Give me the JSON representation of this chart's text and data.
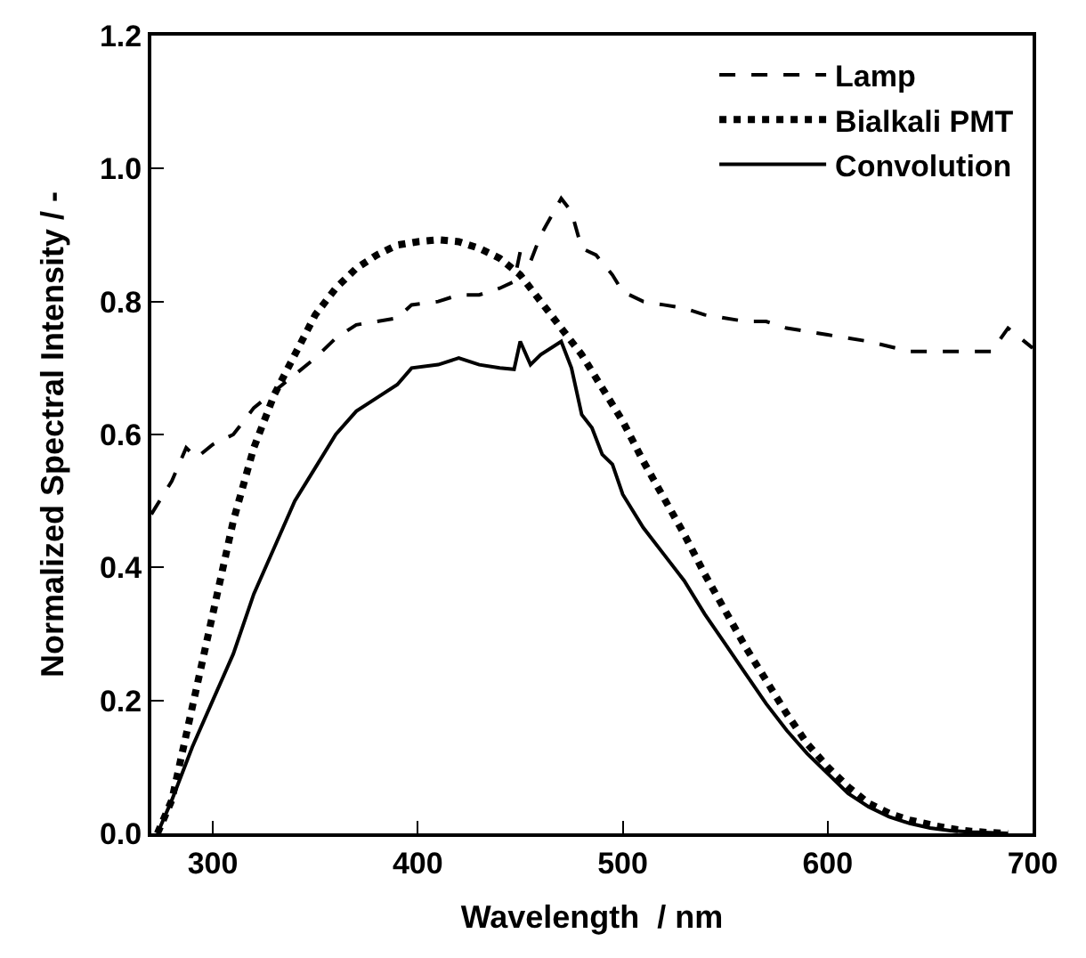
{
  "chart_data": {
    "type": "line",
    "xlabel": "Wavelength  / nm",
    "ylabel": "Normalized Spectral Intensity / -",
    "xlim": [
      270,
      700
    ],
    "xticks": [
      300,
      400,
      500,
      600,
      700
    ],
    "ylim": [
      0,
      1.2
    ],
    "yticks": [
      {
        "value": 0,
        "label": "0.0"
      },
      0.2,
      0.4,
      0.6,
      0.8,
      {
        "value": 1,
        "label": "1.0"
      },
      1.2
    ],
    "legend": "top right",
    "marker": "none",
    "series": [
      {
        "name": "Lamp",
        "color": "#000000",
        "line_style": "dashed",
        "x": [
          270,
          280,
          287,
          292,
          300,
          310,
          320,
          330,
          340,
          350,
          360,
          370,
          380,
          390,
          397,
          410,
          420,
          430,
          440,
          447,
          450,
          455,
          460,
          470,
          475,
          480,
          487,
          495,
          500,
          510,
          520,
          530,
          540,
          560,
          570,
          580,
          600,
          610,
          620,
          640,
          660,
          680,
          688,
          700
        ],
        "values": [
          0.48,
          0.53,
          0.58,
          0.565,
          0.585,
          0.6,
          0.64,
          0.665,
          0.69,
          0.715,
          0.745,
          0.765,
          0.77,
          0.775,
          0.795,
          0.8,
          0.81,
          0.81,
          0.82,
          0.83,
          0.875,
          0.86,
          0.9,
          0.955,
          0.935,
          0.88,
          0.87,
          0.84,
          0.815,
          0.8,
          0.795,
          0.79,
          0.78,
          0.77,
          0.77,
          0.76,
          0.75,
          0.745,
          0.74,
          0.725,
          0.725,
          0.725,
          0.76,
          0.73
        ]
      },
      {
        "name": "Bialkali PMT",
        "color": "#000000",
        "line_style": "dotted",
        "x": [
          273,
          280,
          290,
          300,
          310,
          320,
          330,
          340,
          350,
          360,
          370,
          380,
          390,
          400,
          410,
          420,
          430,
          440,
          450,
          460,
          470,
          480,
          490,
          500,
          510,
          520,
          530,
          540,
          550,
          560,
          570,
          580,
          590,
          600,
          610,
          620,
          630,
          640,
          650,
          660,
          670,
          680,
          688
        ],
        "values": [
          0.0,
          0.05,
          0.19,
          0.33,
          0.47,
          0.58,
          0.66,
          0.72,
          0.78,
          0.82,
          0.85,
          0.87,
          0.885,
          0.89,
          0.893,
          0.89,
          0.88,
          0.865,
          0.84,
          0.8,
          0.76,
          0.72,
          0.67,
          0.62,
          0.56,
          0.505,
          0.45,
          0.39,
          0.335,
          0.28,
          0.23,
          0.18,
          0.135,
          0.1,
          0.07,
          0.045,
          0.03,
          0.02,
          0.013,
          0.007,
          0.003,
          0.001,
          0.0
        ]
      },
      {
        "name": "Convolution",
        "color": "#000000",
        "line_style": "solid",
        "x": [
          273,
          280,
          290,
          300,
          310,
          320,
          330,
          340,
          350,
          360,
          370,
          380,
          390,
          397,
          410,
          420,
          430,
          440,
          447,
          450,
          455,
          460,
          470,
          475,
          480,
          485,
          490,
          495,
          500,
          510,
          520,
          530,
          540,
          550,
          560,
          570,
          580,
          590,
          600,
          610,
          620,
          630,
          640,
          650,
          660,
          670,
          688
        ],
        "values": [
          0.0,
          0.05,
          0.13,
          0.2,
          0.27,
          0.36,
          0.43,
          0.5,
          0.55,
          0.6,
          0.635,
          0.655,
          0.675,
          0.7,
          0.705,
          0.715,
          0.705,
          0.7,
          0.698,
          0.74,
          0.705,
          0.72,
          0.74,
          0.7,
          0.63,
          0.61,
          0.57,
          0.555,
          0.51,
          0.46,
          0.42,
          0.38,
          0.33,
          0.285,
          0.24,
          0.195,
          0.155,
          0.12,
          0.09,
          0.06,
          0.04,
          0.025,
          0.015,
          0.008,
          0.004,
          0.002,
          0.0
        ]
      }
    ]
  }
}
